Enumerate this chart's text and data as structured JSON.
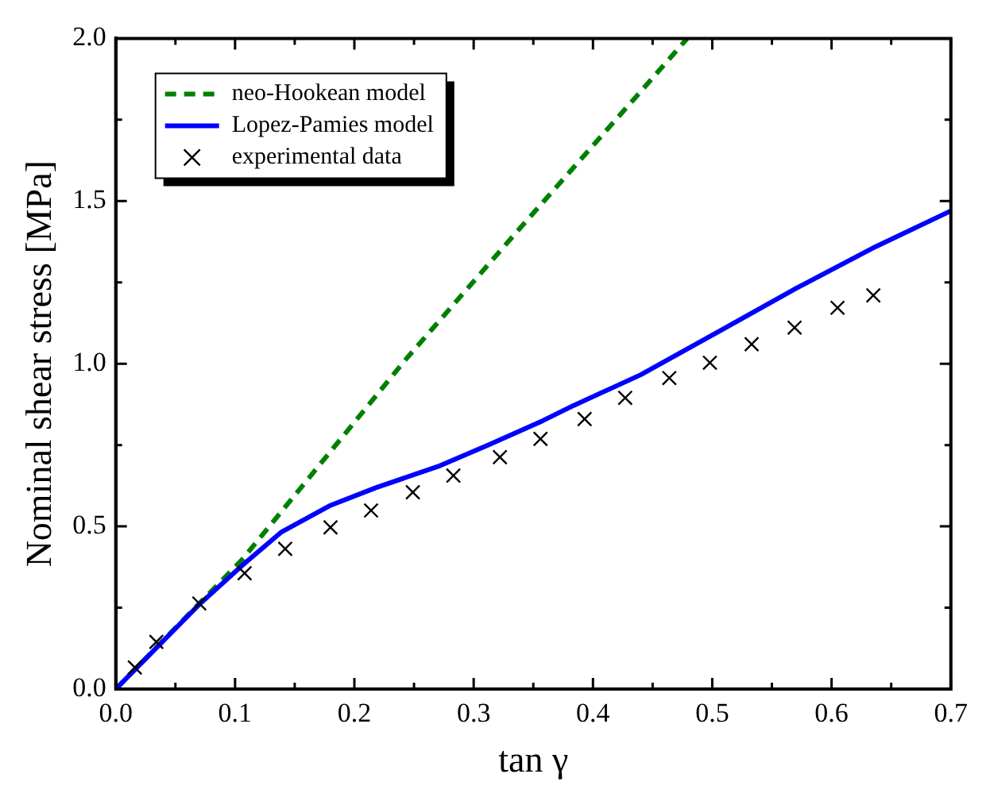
{
  "chart_data": {
    "type": "line",
    "xlabel": "tan γ",
    "ylabel": "Nominal shear stress [MPa]",
    "xlim": [
      0,
      0.7
    ],
    "ylim": [
      0,
      2.0
    ],
    "xticks": [
      {
        "value": 0,
        "label": "0.0"
      },
      {
        "value": 0.05,
        "label": null
      },
      0.1,
      {
        "value": 0.15,
        "label": null
      },
      0.2,
      {
        "value": 0.25,
        "label": null
      },
      0.3,
      {
        "value": 0.35,
        "label": null
      },
      0.4,
      {
        "value": 0.45,
        "label": null
      },
      0.5,
      {
        "value": 0.55,
        "label": null
      },
      0.6,
      {
        "value": 0.65,
        "label": null
      },
      0.7
    ],
    "yticks": [
      {
        "value": 0,
        "label": "0.0"
      },
      {
        "value": 0.25,
        "label": null
      },
      0.5,
      {
        "value": 0.75,
        "label": null
      },
      {
        "value": 1,
        "label": "1.0"
      },
      {
        "value": 1.25,
        "label": null
      },
      1.5,
      {
        "value": 1.75,
        "label": null
      },
      {
        "value": 2,
        "label": "2.0"
      }
    ],
    "grid": false,
    "legend": "top left",
    "series": [
      {
        "name": "neo-Hookean model",
        "color": "#008000",
        "line_style": "dashed",
        "marker": "none",
        "x": [
          0,
          0.106,
          0.243,
          0.332,
          0.436,
          0.479
        ],
        "values": [
          0,
          0.398,
          1.013,
          1.388,
          1.82,
          2.0
        ]
      },
      {
        "name": "Lopez-Pamies model",
        "color": "#0000ff",
        "line_style": "solid",
        "marker": "none",
        "x": [
          0,
          0.035,
          0.07,
          0.106,
          0.139,
          0.179,
          0.218,
          0.27,
          0.312,
          0.358,
          0.384,
          0.44,
          0.506,
          0.571,
          0.637,
          0.7
        ],
        "values": [
          0,
          0.13,
          0.26,
          0.38,
          0.483,
          0.563,
          0.619,
          0.684,
          0.75,
          0.825,
          0.872,
          0.966,
          1.1,
          1.233,
          1.36,
          1.47
        ]
      },
      {
        "name": "experimental data",
        "type": "scatter",
        "color": "#000000",
        "marker": "cross",
        "x": [
          0.016,
          0.034,
          0.07,
          0.108,
          0.142,
          0.18,
          0.214,
          0.249,
          0.283,
          0.322,
          0.356,
          0.393,
          0.427,
          0.464,
          0.498,
          0.533,
          0.569,
          0.605,
          0.635
        ],
        "values": [
          0.066,
          0.145,
          0.263,
          0.356,
          0.431,
          0.497,
          0.549,
          0.605,
          0.656,
          0.713,
          0.769,
          0.83,
          0.895,
          0.956,
          1.003,
          1.06,
          1.111,
          1.172,
          1.21
        ]
      }
    ]
  }
}
